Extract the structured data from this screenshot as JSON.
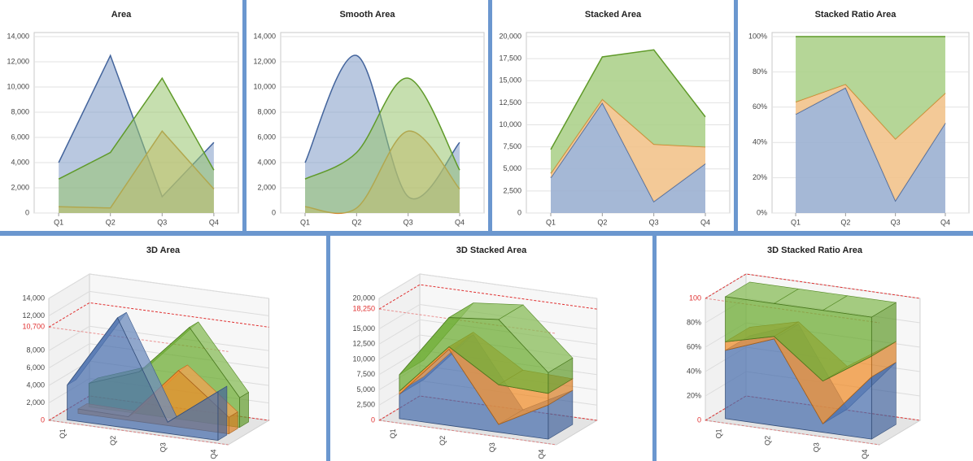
{
  "chart_data": [
    {
      "type": "area",
      "title": "Area",
      "categories": [
        "Q1",
        "Q2",
        "Q3",
        "Q4"
      ],
      "series": [
        {
          "color": "#4a6fad",
          "values": [
            4000,
            12500,
            1300,
            5600
          ]
        },
        {
          "color": "#e8922e",
          "values": [
            500,
            400,
            6500,
            1900
          ]
        },
        {
          "color": "#6aab2e",
          "values": [
            2700,
            4800,
            10700,
            3400
          ]
        }
      ],
      "ylim": [
        0,
        14000
      ],
      "yticks": [
        0,
        {
          "value": 2000,
          "label": "2,000"
        },
        {
          "value": 4000,
          "label": "4,000"
        },
        {
          "value": 6000,
          "label": "6,000"
        },
        {
          "value": 8000,
          "label": "8,000"
        },
        {
          "value": 10000,
          "label": "10,000"
        },
        {
          "value": 12000,
          "label": "12,000"
        },
        {
          "value": 14000,
          "label": "14,000"
        }
      ],
      "grid": true,
      "smooth": false,
      "stacking": "none"
    },
    {
      "type": "area",
      "title": "Smooth Area",
      "categories": [
        "Q1",
        "Q2",
        "Q3",
        "Q4"
      ],
      "series": [
        {
          "color": "#4a6fad",
          "values": [
            4000,
            12500,
            1300,
            5600
          ]
        },
        {
          "color": "#e8922e",
          "values": [
            500,
            400,
            6500,
            1900
          ]
        },
        {
          "color": "#6aab2e",
          "values": [
            2700,
            4800,
            10700,
            3400
          ]
        }
      ],
      "ylim": [
        0,
        14000
      ],
      "yticks": [
        0,
        {
          "value": 2000,
          "label": "2,000"
        },
        {
          "value": 4000,
          "label": "4,000"
        },
        {
          "value": 6000,
          "label": "6,000"
        },
        {
          "value": 8000,
          "label": "8,000"
        },
        {
          "value": 10000,
          "label": "10,000"
        },
        {
          "value": 12000,
          "label": "12,000"
        },
        {
          "value": 14000,
          "label": "14,000"
        }
      ],
      "grid": true,
      "smooth": true,
      "stacking": "none"
    },
    {
      "type": "area",
      "title": "Stacked Area",
      "categories": [
        "Q1",
        "Q2",
        "Q3",
        "Q4"
      ],
      "series": [
        {
          "color": "#4a6fad",
          "values": [
            4000,
            12500,
            1300,
            5600
          ]
        },
        {
          "color": "#e8922e",
          "values": [
            500,
            400,
            6500,
            1900
          ]
        },
        {
          "color": "#6aab2e",
          "values": [
            2700,
            4800,
            10700,
            3400
          ]
        }
      ],
      "ylim": [
        0,
        20000
      ],
      "yticks": [
        0,
        {
          "value": 2500,
          "label": "2,500"
        },
        {
          "value": 5000,
          "label": "5,000"
        },
        {
          "value": 7500,
          "label": "7,500"
        },
        {
          "value": 10000,
          "label": "10,000"
        },
        {
          "value": 12500,
          "label": "12,500"
        },
        {
          "value": 15000,
          "label": "15,000"
        },
        {
          "value": 17500,
          "label": "17,500"
        },
        {
          "value": 20000,
          "label": "20,000"
        }
      ],
      "grid": true,
      "smooth": false,
      "stacking": "normal"
    },
    {
      "type": "area",
      "title": "Stacked Ratio Area",
      "categories": [
        "Q1",
        "Q2",
        "Q3",
        "Q4"
      ],
      "series": [
        {
          "color": "#4a6fad",
          "values": [
            56,
            71,
            7,
            51
          ]
        },
        {
          "color": "#e8922e",
          "values": [
            7,
            2,
            35,
            17
          ]
        },
        {
          "color": "#6aab2e",
          "values": [
            37,
            27,
            58,
            32
          ]
        }
      ],
      "ylim": [
        0,
        100
      ],
      "yticks": [
        {
          "value": 0,
          "label": "0%"
        },
        {
          "value": 20,
          "label": "20%"
        },
        {
          "value": 40,
          "label": "40%"
        },
        {
          "value": 60,
          "label": "60%"
        },
        {
          "value": 80,
          "label": "80%"
        },
        {
          "value": 100,
          "label": "100%"
        }
      ],
      "grid": true,
      "smooth": false,
      "stacking": "percent"
    },
    {
      "type": "area3d",
      "title": "3D Area",
      "categories": [
        "Q1",
        "Q2",
        "Q3",
        "Q4"
      ],
      "series": [
        {
          "color": "#4a6fad",
          "values": [
            4000,
            12500,
            1300,
            5600
          ]
        },
        {
          "color": "#f08c28",
          "values": [
            500,
            400,
            6500,
            1900
          ]
        },
        {
          "color": "#6aab2e",
          "values": [
            2700,
            4800,
            10700,
            3400
          ]
        }
      ],
      "ylim": [
        0,
        14000
      ],
      "yticks": [
        {
          "value": 2000,
          "label": "2,000"
        },
        {
          "value": 4000,
          "label": "4,000"
        },
        {
          "value": 6000,
          "label": "6,000"
        },
        {
          "value": 8000,
          "label": "8,000"
        },
        {
          "value": 12000,
          "label": "12,000"
        },
        {
          "value": 14000,
          "label": "14,000"
        }
      ],
      "ref_lines": [
        {
          "value": 10700,
          "label": "10,700"
        },
        {
          "value": 0,
          "label": "0"
        }
      ],
      "grid": true,
      "stacking": "none"
    },
    {
      "type": "area3d",
      "title": "3D Stacked Area",
      "categories": [
        "Q1",
        "Q2",
        "Q3",
        "Q4"
      ],
      "series": [
        {
          "color": "#4a6fad",
          "values": [
            4000,
            12500,
            1300,
            5600
          ]
        },
        {
          "color": "#f08c28",
          "values": [
            500,
            400,
            6500,
            1900
          ]
        },
        {
          "color": "#6aab2e",
          "values": [
            2700,
            4800,
            10700,
            3400
          ]
        }
      ],
      "ylim": [
        0,
        20000
      ],
      "yticks": [
        {
          "value": 2500,
          "label": "2,500"
        },
        {
          "value": 5000,
          "label": "5,000"
        },
        {
          "value": 7500,
          "label": "7,500"
        },
        {
          "value": 10000,
          "label": "10,000"
        },
        {
          "value": 12500,
          "label": "12,500"
        },
        {
          "value": 15000,
          "label": "15,000"
        },
        {
          "value": 20000,
          "label": "20,000"
        }
      ],
      "ref_lines": [
        {
          "value": 18250,
          "label": "18,250"
        },
        {
          "value": 0,
          "label": "0"
        }
      ],
      "grid": true,
      "stacking": "normal"
    },
    {
      "type": "area3d",
      "title": "3D Stacked Ratio Area",
      "categories": [
        "Q1",
        "Q2",
        "Q3",
        "Q4"
      ],
      "series": [
        {
          "color": "#4a6fad",
          "values": [
            56,
            71,
            7,
            51
          ]
        },
        {
          "color": "#f08c28",
          "values": [
            7,
            2,
            35,
            17
          ]
        },
        {
          "color": "#6aab2e",
          "values": [
            37,
            27,
            58,
            32
          ]
        }
      ],
      "ylim": [
        0,
        100
      ],
      "yticks": [
        {
          "value": 20,
          "label": "20%"
        },
        {
          "value": 40,
          "label": "40%"
        },
        {
          "value": 60,
          "label": "60%"
        },
        {
          "value": 80,
          "label": "80%"
        }
      ],
      "ref_lines": [
        {
          "value": 100,
          "label": "100"
        },
        {
          "value": 0,
          "label": "0"
        }
      ],
      "grid": true,
      "stacking": "percent"
    }
  ]
}
